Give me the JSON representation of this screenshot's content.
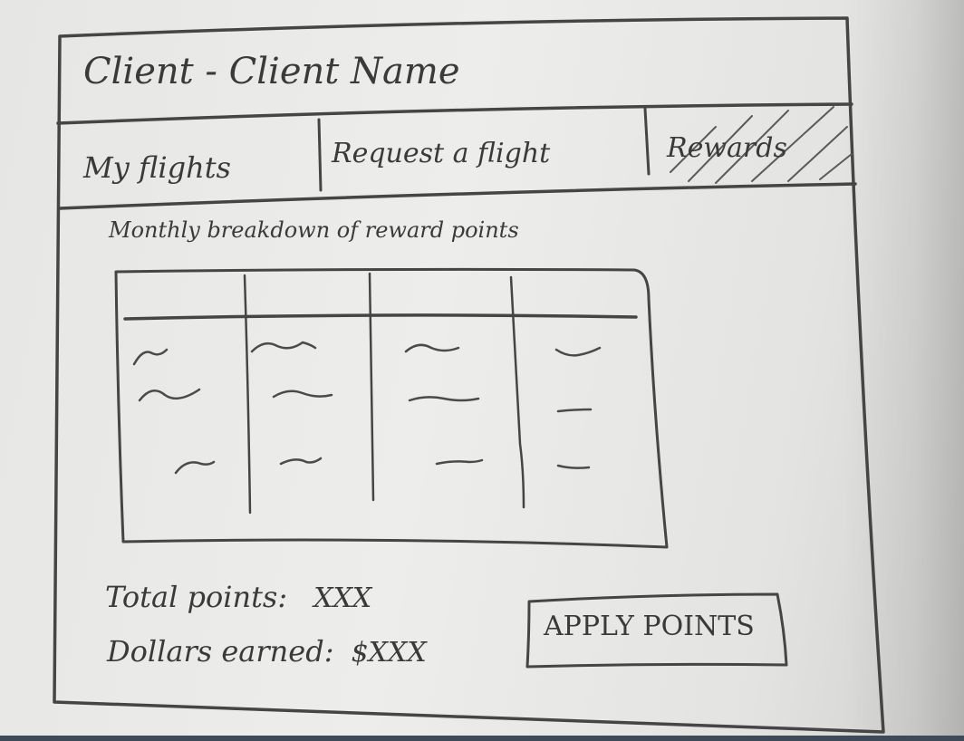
{
  "header": {
    "title": "Client - Client Name"
  },
  "tabs": [
    {
      "label": "My flights"
    },
    {
      "label": "Request a flight"
    },
    {
      "label": "Rewards",
      "selected": true
    }
  ],
  "rewards": {
    "heading": "Monthly breakdown of reward points",
    "table": {
      "columns": 4,
      "rows": 3
    },
    "total_points_label": "Total points:",
    "total_points_value": "XXX",
    "dollars_earned_label": "Dollars earned:",
    "dollars_earned_value": "$XXX",
    "apply_button_label": "APPLY POINTS"
  },
  "colors": {
    "pencil": "#454545",
    "paper": "#e8e8e6"
  }
}
